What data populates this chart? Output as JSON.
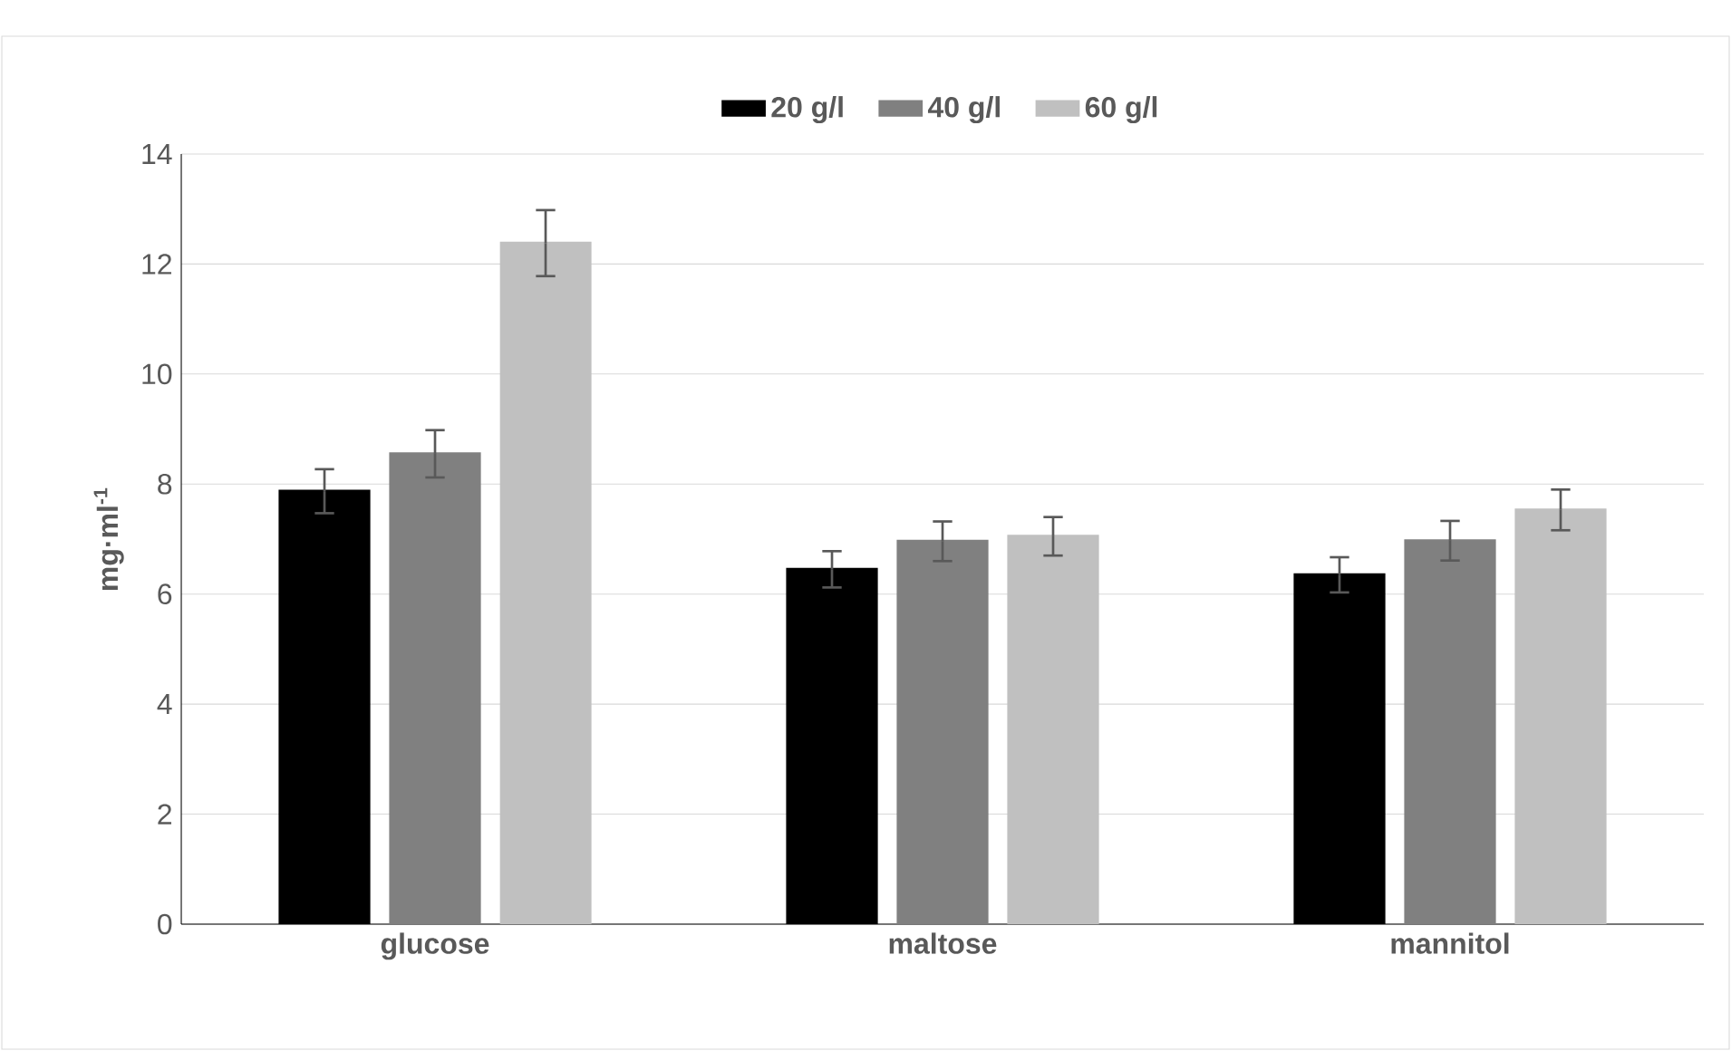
{
  "chart_data": {
    "type": "bar",
    "ylabel": "mg·ml$^{-1}$",
    "categories": [
      "glucose",
      "maltose",
      "mannitol"
    ],
    "series": [
      {
        "name": "20 g/l",
        "color": "#000000",
        "values": [
          7.87,
          6.45,
          6.35
        ],
        "errors": [
          0.4,
          0.33,
          0.32
        ]
      },
      {
        "name": "40 g/l",
        "color": "#808080",
        "values": [
          8.55,
          6.96,
          6.97
        ],
        "errors": [
          0.43,
          0.36,
          0.36
        ]
      },
      {
        "name": "60 g/l",
        "color": "#c0c0c0",
        "values": [
          12.38,
          7.05,
          7.53
        ],
        "errors": [
          0.6,
          0.35,
          0.37
        ]
      }
    ],
    "ylim": [
      0,
      14
    ],
    "yticks": [
      0,
      2,
      4,
      6,
      8,
      10,
      12,
      14
    ],
    "grid": "y",
    "legend": "top"
  }
}
